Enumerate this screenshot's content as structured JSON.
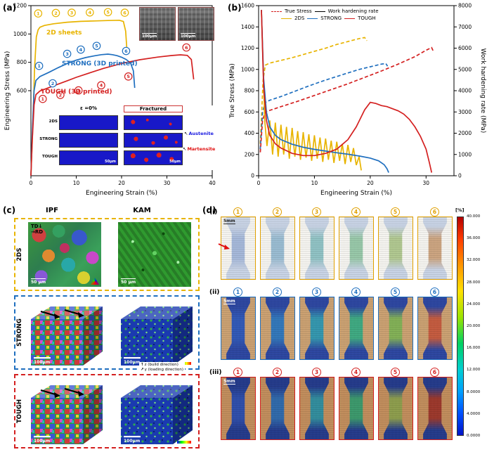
{
  "icons": {
    "arrow_down": "↓",
    "arrow_right": "→",
    "arrow_up": "↑",
    "arrow_up_right": "↗",
    "arrow_up_left": "↖"
  },
  "panel_a": {
    "label": "(a)",
    "legend": {
      "sheets": "2D sheets",
      "strong": "STRONG  (3D printed)",
      "tough": "TOUGH (3D printed)"
    },
    "inset_sem": {
      "scalebar_left": "100μm",
      "scalebar_right": "100μm"
    },
    "inset_ebsd": {
      "col_left": "ε =0%",
      "col_right": "Fractured",
      "rows": [
        "2DS",
        "STRONG",
        "TOUGH"
      ],
      "austenite": "Austenite",
      "martensite": "Martensite",
      "scalebar": "50μm"
    }
  },
  "panel_b": {
    "label": "(b)",
    "legend": {
      "true_stress": "True Stress",
      "whr": "Work hardening rate",
      "s2ds": "2DS",
      "strong": "STRONG",
      "tough": "TOUGH"
    }
  },
  "panel_c": {
    "label": "(c)",
    "col_headers": [
      "IPF",
      "KAM"
    ],
    "rows": [
      "2DS",
      "STRONG",
      "TOUGH"
    ],
    "annotations": {
      "td": "TD",
      "rd": "RD",
      "z_axis": "z (build direction)",
      "y_axis": "y (loading direction)"
    },
    "scalebars": {
      "ipf_2ds": "50 μm",
      "kam_2ds": "50 μm",
      "ipf_strong": "100μm",
      "kam_strong": "100μm",
      "ipf_tough": "100μm",
      "kam_tough": "100μm"
    }
  },
  "panel_d": {
    "label": "(d)",
    "rows": [
      {
        "sub": "(i)",
        "color": "#e0a000",
        "bg": "#f4f3ef",
        "spec_base": "#c7d2e4",
        "scale": "5mm",
        "scale_color": "#222222",
        "arrow": true,
        "frames": [
          "1",
          "2",
          "3",
          "4",
          "5",
          "6"
        ],
        "frame_colors": [
          "#a3b6d8",
          "#97bad0",
          "#8dc0c2",
          "#95c6a6",
          "#aec68d",
          "#caa27d"
        ]
      },
      {
        "sub": "(ii)",
        "color": "#1f6fbf",
        "bg": "#c99e6e",
        "spec_base": "#28429e",
        "scale": "5mm",
        "scale_color": "#ffffff",
        "arrow": false,
        "frames": [
          "1",
          "2",
          "3",
          "4",
          "5",
          "6"
        ],
        "frame_colors": [
          "#2c55b5",
          "#2d74b8",
          "#2f94ac",
          "#3aa77e",
          "#7fae52",
          "#c2573a"
        ]
      },
      {
        "sub": "(iii)",
        "color": "#d42020",
        "bg": "#bf8a58",
        "spec_base": "#1f3688",
        "scale": "5mm",
        "scale_color": "#ffffff",
        "arrow": false,
        "frames": [
          "1",
          "2",
          "3",
          "4",
          "5",
          "6"
        ],
        "frame_colors": [
          "#2a4aa8",
          "#2b66a8",
          "#2d8a9a",
          "#379668",
          "#8a9a48",
          "#993326"
        ]
      }
    ],
    "colorbar": {
      "title": "[%]",
      "ticks": [
        "40.000",
        "36.000",
        "32.000",
        "28.000",
        "24.000",
        "20.000",
        "16.000",
        "12.000",
        "8.0000",
        "4.0000",
        "0.0000"
      ]
    }
  },
  "chart_data": [
    {
      "id": "chart-a",
      "type": "line",
      "xlabel": "Engineering Strain (%)",
      "ylabel_left": "Engineering Stress (MPa)",
      "xlim": [
        0,
        40
      ],
      "ylim_left": [
        0,
        1200
      ],
      "xticks": [
        0,
        10,
        20,
        30,
        40
      ],
      "yticks_left": [
        600,
        800,
        1000,
        1200
      ],
      "margins": {
        "l": 42,
        "r": 12,
        "t": 6,
        "b": 40
      },
      "series": [
        {
          "name": "2D sheets",
          "color": "#e8b400",
          "dash": null,
          "x": [
            0,
            0.4,
            0.8,
            1.2,
            1.6,
            2,
            3,
            5,
            8,
            11,
            14,
            17,
            19.5,
            20.4,
            20.9,
            21.2
          ],
          "y": [
            0,
            340,
            760,
            980,
            1030,
            1048,
            1060,
            1072,
            1083,
            1089,
            1092,
            1095,
            1097,
            1088,
            1020,
            880
          ]
        },
        {
          "name": "STRONG 3D printed",
          "color": "#1f6fbf",
          "dash": null,
          "x": [
            0,
            0.3,
            0.7,
            1.1,
            2,
            4,
            6,
            8,
            10,
            12,
            14,
            15.5,
            17,
            18,
            19,
            20,
            21,
            22,
            22.6,
            22.9
          ],
          "y": [
            0,
            300,
            600,
            672,
            700,
            730,
            762,
            792,
            815,
            833,
            846,
            854,
            858,
            854,
            847,
            836,
            820,
            795,
            740,
            620
          ]
        },
        {
          "name": "TOUGH 3D printed",
          "color": "#d42020",
          "dash": null,
          "x": [
            0,
            0.3,
            0.7,
            1.1,
            2,
            4,
            6,
            8,
            10,
            13,
            16,
            20,
            24,
            28,
            31,
            33,
            34.5,
            35.4,
            35.9
          ],
          "y": [
            0,
            250,
            500,
            572,
            598,
            622,
            646,
            670,
            694,
            726,
            757,
            792,
            818,
            837,
            848,
            853,
            849,
            820,
            680
          ]
        }
      ],
      "markers": [
        {
          "x": 1.6,
          "y": 1145,
          "label": "1",
          "color": "#e8b400"
        },
        {
          "x": 5.5,
          "y": 1148,
          "label": "2",
          "color": "#e8b400"
        },
        {
          "x": 9,
          "y": 1150,
          "label": "3",
          "color": "#e8b400"
        },
        {
          "x": 13,
          "y": 1152,
          "label": "4",
          "color": "#e8b400"
        },
        {
          "x": 17,
          "y": 1154,
          "label": "5",
          "color": "#e8b400"
        },
        {
          "x": 20.7,
          "y": 1150,
          "label": "6",
          "color": "#e8b400"
        },
        {
          "x": 1.8,
          "y": 775,
          "label": "1",
          "color": "#1f6fbf"
        },
        {
          "x": 4.8,
          "y": 652,
          "label": "2",
          "color": "#1f6fbf"
        },
        {
          "x": 8,
          "y": 860,
          "label": "3",
          "color": "#1f6fbf"
        },
        {
          "x": 11,
          "y": 890,
          "label": "4",
          "color": "#1f6fbf"
        },
        {
          "x": 14.5,
          "y": 916,
          "label": "5",
          "color": "#1f6fbf"
        },
        {
          "x": 21,
          "y": 880,
          "label": "6",
          "color": "#1f6fbf"
        },
        {
          "x": 2.6,
          "y": 542,
          "label": "1",
          "color": "#d42020"
        },
        {
          "x": 6.5,
          "y": 570,
          "label": "2",
          "color": "#d42020"
        },
        {
          "x": 10.5,
          "y": 602,
          "label": "3",
          "color": "#d42020"
        },
        {
          "x": 15.5,
          "y": 638,
          "label": "4",
          "color": "#d42020"
        },
        {
          "x": 21.5,
          "y": 700,
          "label": "5",
          "color": "#d42020"
        },
        {
          "x": 34.3,
          "y": 905,
          "label": "6",
          "color": "#d42020"
        }
      ]
    },
    {
      "id": "chart-b",
      "type": "line",
      "xlabel": "Engineering Strain (%)",
      "ylabel_left": "True Stress (MPa)",
      "ylabel_right": "Work hardening rate (MPa)",
      "xlim": [
        0,
        35
      ],
      "ylim_left": [
        0,
        1600
      ],
      "ylim_right": [
        0,
        8000
      ],
      "xticks": [
        0,
        10,
        20,
        30
      ],
      "yticks_left": [
        0,
        200,
        400,
        600,
        800,
        1000,
        1200,
        1400,
        1600
      ],
      "yticks_right": [
        0,
        1000,
        2000,
        3000,
        4000,
        5000,
        6000,
        7000,
        8000
      ],
      "margins": {
        "l": 46,
        "r": 46,
        "t": 6,
        "b": 40
      },
      "series": [
        {
          "name": "2DS true stress",
          "color": "#e8b400",
          "dash": "5,3",
          "axis": "left",
          "x": [
            0.3,
            0.8,
            1.2,
            2,
            4,
            6,
            8,
            10,
            12,
            14,
            16,
            18,
            19,
            19.4
          ],
          "y": [
            300,
            900,
            1040,
            1060,
            1085,
            1110,
            1140,
            1170,
            1200,
            1235,
            1262,
            1290,
            1300,
            1270
          ]
        },
        {
          "name": "STRONG true stress",
          "color": "#1f6fbf",
          "dash": "5,3",
          "axis": "left",
          "x": [
            0.3,
            0.7,
            1.2,
            2,
            4,
            6,
            9,
            12,
            15,
            18,
            20,
            22,
            22.8,
            23.1
          ],
          "y": [
            250,
            600,
            690,
            710,
            745,
            785,
            845,
            900,
            950,
            1000,
            1025,
            1050,
            1055,
            1030
          ]
        },
        {
          "name": "TOUGH true stress",
          "color": "#d42020",
          "dash": "5,3",
          "axis": "left",
          "x": [
            0.3,
            0.7,
            1.2,
            2,
            4,
            7,
            10,
            13,
            16,
            19,
            22,
            25,
            28,
            30,
            31,
            31.4
          ],
          "y": [
            220,
            520,
            600,
            615,
            650,
            700,
            755,
            810,
            865,
            925,
            985,
            1050,
            1120,
            1180,
            1205,
            1160
          ]
        },
        {
          "name": "2DS work hardening rate",
          "color": "#e8b400",
          "dash": null,
          "axis": "right",
          "x": [
            0.5,
            0.8,
            1.1,
            1.5,
            2,
            2.5,
            3,
            3.5,
            4,
            4.5,
            5,
            5.5,
            6,
            6.5,
            7,
            7.5,
            8,
            8.5,
            9,
            9.5,
            10,
            10.5,
            11,
            11.5,
            12,
            12.5,
            13,
            13.5,
            14,
            14.5,
            15,
            15.5,
            16,
            16.5,
            17,
            17.5,
            18,
            18.4
          ],
          "y": [
            7800,
            5200,
            2600,
            1400,
            2600,
            1000,
            2500,
            900,
            2400,
            1000,
            2300,
            800,
            2250,
            900,
            2100,
            750,
            2050,
            850,
            1950,
            700,
            1900,
            800,
            1800,
            650,
            1750,
            750,
            1650,
            600,
            1600,
            700,
            1500,
            550,
            1450,
            650,
            1300,
            500,
            900,
            250
          ]
        },
        {
          "name": "STRONG work hardening rate",
          "color": "#1f6fbf",
          "dash": null,
          "axis": "right",
          "x": [
            0.5,
            0.9,
            1.4,
            2,
            3,
            4,
            6,
            8,
            10,
            12,
            14,
            16,
            18,
            20,
            21.5,
            22.5,
            23,
            23.3
          ],
          "y": [
            7800,
            4600,
            3000,
            2300,
            1900,
            1700,
            1480,
            1340,
            1240,
            1160,
            1080,
            1010,
            930,
            830,
            700,
            520,
            330,
            150
          ]
        },
        {
          "name": "TOUGH work hardening rate",
          "color": "#d42020",
          "dash": null,
          "axis": "right",
          "x": [
            0.5,
            0.9,
            1.4,
            2,
            3,
            4,
            6,
            8,
            10,
            12,
            14,
            16,
            17.5,
            19,
            20,
            21,
            22,
            23,
            24,
            25,
            26,
            27,
            28,
            29,
            30,
            30.6,
            31
          ],
          "y": [
            7800,
            4200,
            2600,
            1900,
            1500,
            1300,
            1050,
            950,
            950,
            1050,
            1250,
            1700,
            2300,
            3100,
            3450,
            3400,
            3300,
            3250,
            3150,
            3050,
            2900,
            2650,
            2300,
            1850,
            1250,
            600,
            150
          ]
        }
      ]
    }
  ]
}
